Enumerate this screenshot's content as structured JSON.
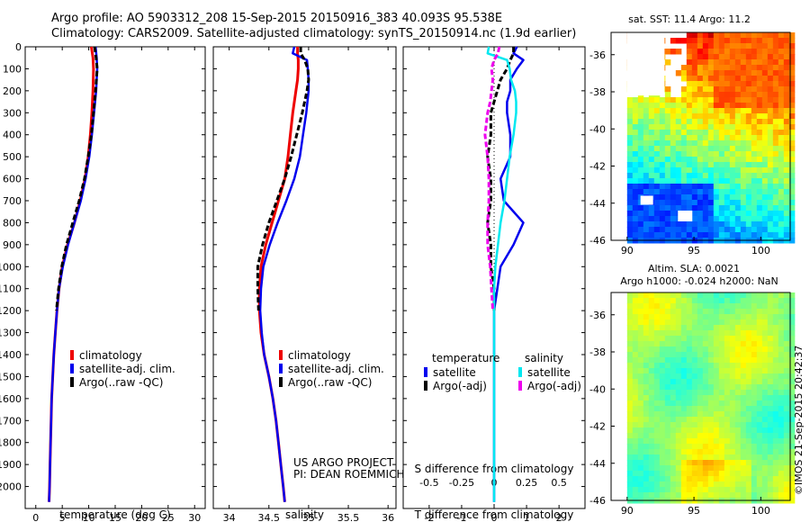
{
  "header": {
    "line1": "Argo profile: AO 5903312_208 15-Sep-2015 20150916_383 40.093S 95.538E",
    "line2": "Climatology: CARS2009. Satellite-adjusted climatology: synTS_20150914.nc (1.9d earlier)"
  },
  "depth_ticks": [
    0,
    100,
    200,
    300,
    400,
    500,
    600,
    700,
    800,
    900,
    1000,
    1100,
    1200,
    1300,
    1400,
    1500,
    1600,
    1700,
    1800,
    1900,
    2000
  ],
  "colors": {
    "climatology": "#ee0000",
    "satellite": "#0000ee",
    "argo": "#000000",
    "salinity_sat": "#00e8f0",
    "salinity_argo": "#ee00ee"
  },
  "chart_data": [
    {
      "type": "line",
      "panel": "temperature",
      "xlabel": "temperature (deg C)",
      "ylabel": "",
      "xlim": [
        -2,
        32
      ],
      "ylim": [
        2100,
        0
      ],
      "xticks": [
        0,
        5,
        10,
        15,
        20,
        25,
        30
      ],
      "legend": [
        "climatology",
        "satellite-adj. clim.",
        "Argo(..raw -QC)"
      ],
      "legend_placement": "lower-right",
      "depth": [
        0,
        50,
        100,
        200,
        300,
        400,
        500,
        600,
        700,
        800,
        900,
        1000,
        1100,
        1200,
        1300,
        1400,
        1500,
        1600,
        1700,
        1800,
        1900,
        2000,
        2070
      ],
      "series": [
        {
          "name": "climatology",
          "values": [
            10.5,
            10.8,
            10.9,
            10.8,
            10.6,
            10.3,
            9.9,
            9.3,
            8.4,
            7.3,
            6.0,
            5.0,
            4.4,
            4.0,
            3.7,
            3.4,
            3.2,
            3.0,
            2.9,
            2.8,
            2.7,
            2.6,
            2.5
          ]
        },
        {
          "name": "satellite-adj. clim.",
          "values": [
            11.3,
            11.5,
            11.6,
            11.4,
            11.0,
            10.6,
            10.1,
            9.4,
            8.5,
            7.3,
            6.1,
            5.1,
            4.4,
            4.0,
            3.7,
            3.4,
            3.2,
            3.0,
            2.9,
            2.8,
            2.7,
            2.6,
            2.5
          ]
        },
        {
          "name": "Argo(..raw -QC)",
          "values": [
            11.1,
            11.4,
            11.6,
            11.3,
            10.9,
            10.5,
            9.9,
            9.2,
            8.2,
            7.0,
            5.8,
            4.9,
            4.3,
            3.9,
            null,
            null,
            null,
            null,
            null,
            null,
            null,
            null,
            null
          ]
        }
      ]
    },
    {
      "type": "line",
      "panel": "salinity",
      "xlabel": "salinity",
      "xlim": [
        33.8,
        36.1
      ],
      "ylim": [
        2100,
        0
      ],
      "xticks": [
        34,
        34.5,
        35,
        35.5,
        36
      ],
      "legend": [
        "climatology",
        "satellite-adj. clim.",
        "Argo(..raw -QC)"
      ],
      "legend_placement": "lower-right",
      "annotation": [
        "US ARGO PROJECT",
        "PI: DEAN ROEMMICH"
      ],
      "depth": [
        0,
        30,
        60,
        100,
        150,
        200,
        300,
        400,
        500,
        600,
        700,
        800,
        900,
        1000,
        1100,
        1200,
        1300,
        1400,
        1500,
        1600,
        1700,
        1800,
        1900,
        2000,
        2070
      ],
      "series": [
        {
          "name": "climatology",
          "values": [
            34.86,
            34.86,
            34.87,
            34.87,
            34.86,
            34.84,
            34.8,
            34.77,
            34.74,
            34.7,
            34.62,
            34.54,
            34.46,
            34.4,
            34.38,
            34.38,
            34.4,
            34.44,
            34.5,
            34.55,
            34.59,
            34.62,
            34.65,
            34.68,
            34.7
          ]
        },
        {
          "name": "satellite-adj. clim.",
          "values": [
            34.82,
            34.8,
            34.98,
            34.99,
            35.0,
            35.0,
            34.97,
            34.93,
            34.89,
            34.82,
            34.72,
            34.61,
            34.51,
            34.43,
            34.4,
            34.39,
            34.41,
            34.44,
            34.5,
            34.55,
            34.59,
            34.62,
            34.65,
            34.68,
            34.7
          ]
        },
        {
          "name": "Argo(..raw -QC)",
          "values": [
            34.9,
            34.9,
            34.95,
            34.99,
            35.0,
            34.98,
            34.92,
            34.85,
            34.78,
            34.7,
            34.6,
            34.5,
            34.42,
            34.36,
            34.36,
            34.37,
            null,
            null,
            null,
            null,
            null,
            null,
            null,
            null,
            null
          ]
        }
      ]
    },
    {
      "type": "line",
      "panel": "difference",
      "xlabel": "T difference from climatology",
      "xlabel_top": "S difference from climatology",
      "xlim": [
        -2.8,
        2.8
      ],
      "xlim_salinity": [
        -0.7,
        0.7
      ],
      "ylim": [
        2100,
        0
      ],
      "xticks": [
        -2,
        -1,
        0,
        1,
        2
      ],
      "xticks_salinity": [
        -0.5,
        -0.25,
        0,
        0.25,
        0.5
      ],
      "xtick_labels_salinity": [
        "-0.5",
        "-0.25",
        "0",
        "0.25",
        "0.5"
      ],
      "legend_groups": {
        "temperature": [
          "satellite",
          "Argo(-adj)"
        ],
        "salinity": [
          "satellite",
          "Argo(-adj)"
        ]
      },
      "legend": [
        "temperature",
        "salinity",
        "satellite",
        "Argo(-adj)",
        "satellite",
        "Argo(-adj)"
      ],
      "legend_placement": "lower-center",
      "depth": [
        0,
        30,
        60,
        100,
        150,
        200,
        250,
        300,
        400,
        500,
        600,
        700,
        800,
        900,
        1000,
        1100,
        1200,
        1400,
        1600,
        1800,
        2000,
        2070
      ],
      "series": [
        {
          "name": "satellite",
          "quantity": "temperature",
          "values": [
            0.7,
            0.6,
            0.9,
            0.7,
            0.5,
            0.5,
            0.4,
            0.4,
            0.5,
            0.5,
            0.2,
            0.3,
            0.9,
            0.6,
            0.2,
            0.1,
            0.0,
            0.0,
            0.0,
            0.0,
            0.0,
            0.0
          ]
        },
        {
          "name": "Argo(-adj)",
          "quantity": "temperature",
          "values": [
            0.6,
            0.6,
            0.5,
            0.4,
            0.2,
            0.1,
            0.0,
            -0.1,
            -0.1,
            -0.2,
            -0.1,
            -0.1,
            -0.2,
            -0.1,
            -0.1,
            0.0,
            0.0,
            null,
            null,
            null,
            null,
            null
          ]
        },
        {
          "name": "satellite",
          "quantity": "salinity",
          "values": [
            -0.04,
            -0.05,
            0.1,
            0.12,
            0.13,
            0.16,
            0.17,
            0.17,
            0.15,
            0.12,
            0.1,
            0.08,
            0.05,
            0.03,
            0.01,
            0.0,
            0.0,
            0.0,
            0.0,
            0.0,
            0.0,
            0.0
          ]
        },
        {
          "name": "Argo(-adj)",
          "quantity": "salinity",
          "values": [
            0.04,
            0.03,
            0.0,
            -0.02,
            -0.01,
            -0.02,
            -0.03,
            -0.05,
            -0.07,
            -0.05,
            -0.04,
            -0.04,
            -0.05,
            -0.05,
            -0.03,
            -0.02,
            -0.01,
            null,
            null,
            null,
            null,
            null
          ]
        }
      ]
    },
    {
      "type": "heatmap",
      "panel": "sst_map",
      "title": "sat. SST: 11.4  Argo: 11.2",
      "xlim": [
        88.8,
        102.2
      ],
      "ylim": [
        -46,
        -34.8
      ],
      "xticks": [
        90,
        95,
        100
      ],
      "yticks": [
        -36,
        -38,
        -40,
        -42,
        -44,
        -46
      ],
      "colormap": "jet"
    },
    {
      "type": "heatmap",
      "panel": "sla_map",
      "title_line1": "Altim. SLA: 0.0021",
      "title_line2": "Argo h1000: -0.024 h2000: NaN",
      "xlim": [
        88.8,
        102.2
      ],
      "ylim": [
        -46,
        -34.8
      ],
      "xticks": [
        90,
        95,
        100
      ],
      "yticks": [
        -36,
        -38,
        -40,
        -42,
        -44,
        -46
      ],
      "colormap": "jet",
      "credit": "©IMOS 21-Sep-2015 20:42:37"
    }
  ]
}
